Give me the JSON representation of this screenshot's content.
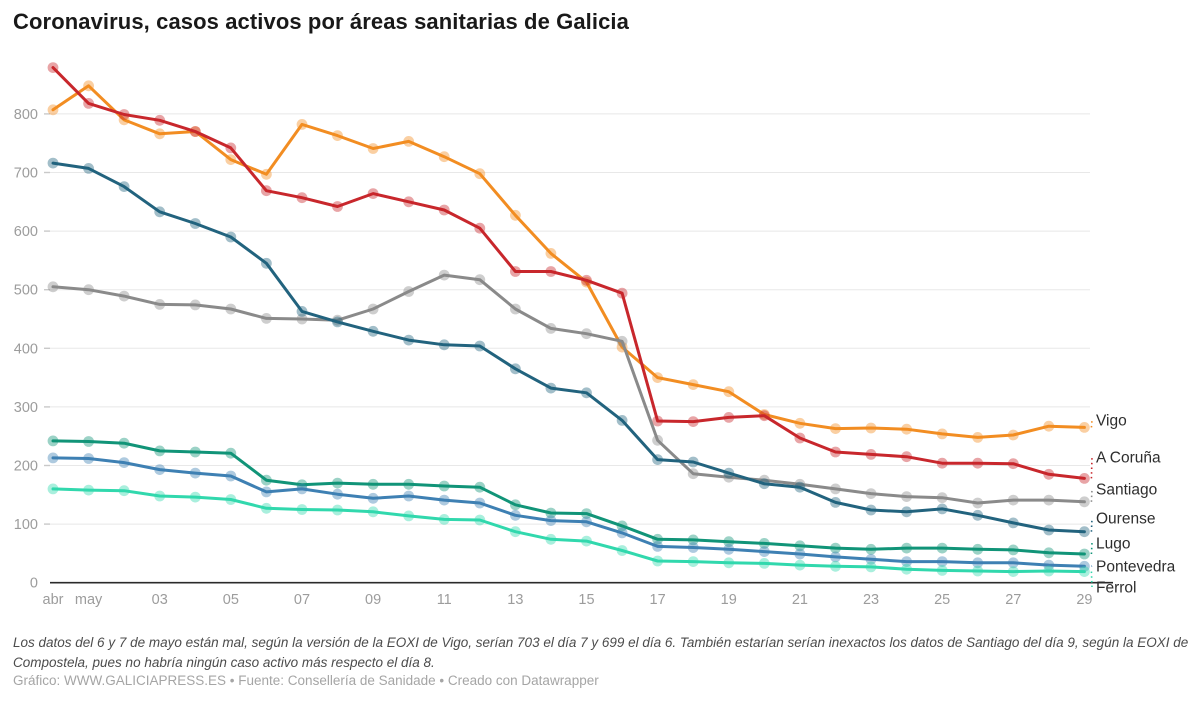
{
  "title": "Coronavirus, casos activos por áreas sanitarias de Galicia",
  "footnote": "Los datos del 6 y 7 de mayo están mal, según la versión de la EOXI de Vigo, serían 703 el día 7 y 699 el día 6. También estarían serían inexactos los datos de Santiago del día 9, según la EOXI de Compostela, pues no habría ningún caso activo más respecto el día 8.",
  "byline": "Gráfico: WWW.GALICIAPRESS.ES • Fuente: Consellería de Sanidade • Creado con Datawrapper",
  "chart_data": {
    "type": "line",
    "title": "Coronavirus, casos activos por áreas sanitarias de Galicia",
    "xlabel": "",
    "ylabel": "",
    "ylim": [
      0,
      900
    ],
    "yticks": [
      0,
      100,
      200,
      300,
      400,
      500,
      600,
      700,
      800
    ],
    "grid": "horizontal",
    "legend_position": "right-edge-labels",
    "categories": [
      "30 abr",
      "1 may",
      "2 may",
      "3 may",
      "4 may",
      "5 may",
      "6 may",
      "7 may",
      "8 may",
      "9 may",
      "10 may",
      "11 may",
      "12 may",
      "13 may",
      "14 may",
      "15 may",
      "16 may",
      "17 may",
      "18 may",
      "19 may",
      "20 may",
      "21 may",
      "22 may",
      "23 may",
      "24 may",
      "25 may",
      "26 may",
      "27 may",
      "28 may",
      "29 may"
    ],
    "x_ticks": [
      {
        "day": 0,
        "label": "abr"
      },
      {
        "day": 1,
        "label": "may"
      },
      {
        "day": 3,
        "label": "03"
      },
      {
        "day": 5,
        "label": "05"
      },
      {
        "day": 7,
        "label": "07"
      },
      {
        "day": 9,
        "label": "09"
      },
      {
        "day": 11,
        "label": "11"
      },
      {
        "day": 13,
        "label": "13"
      },
      {
        "day": 15,
        "label": "15"
      },
      {
        "day": 17,
        "label": "17"
      },
      {
        "day": 19,
        "label": "19"
      },
      {
        "day": 21,
        "label": "21"
      },
      {
        "day": 23,
        "label": "23"
      },
      {
        "day": 25,
        "label": "25"
      },
      {
        "day": 27,
        "label": "27"
      },
      {
        "day": 29,
        "label": "29"
      }
    ],
    "series": [
      {
        "name": "Vigo",
        "slug": "vigo",
        "color": "#f28d22",
        "label_y": 420,
        "values": [
          807,
          848,
          790,
          766,
          770,
          722,
          697,
          782,
          763,
          741,
          753,
          727,
          698,
          627,
          562,
          513,
          402,
          350,
          338,
          326,
          287,
          272,
          263,
          264,
          262,
          254,
          248,
          252,
          267,
          265
        ]
      },
      {
        "name": "A Coruña",
        "slug": "a-coruna",
        "color": "#c8272c",
        "label_y": 457,
        "values": [
          879,
          818,
          799,
          789,
          770,
          742,
          669,
          657,
          642,
          664,
          650,
          636,
          605,
          531,
          531,
          516,
          494,
          276,
          275,
          282,
          285,
          247,
          223,
          219,
          215,
          204,
          204,
          203,
          185,
          178
        ]
      },
      {
        "name": "Santiago",
        "slug": "santiago",
        "color": "#8a8a8a",
        "label_y": 489,
        "values": [
          505,
          500,
          489,
          475,
          474,
          467,
          451,
          450,
          448,
          467,
          497,
          525,
          517,
          467,
          434,
          425,
          412,
          243,
          186,
          180,
          175,
          168,
          160,
          152,
          147,
          145,
          136,
          141,
          141,
          138
        ]
      },
      {
        "name": "Ourense",
        "slug": "ourense",
        "color": "#22637e",
        "label_y": 518,
        "values": [
          716,
          707,
          676,
          633,
          613,
          590,
          545,
          463,
          445,
          429,
          414,
          406,
          404,
          365,
          332,
          324,
          277,
          210,
          206,
          187,
          169,
          163,
          137,
          124,
          121,
          126,
          115,
          102,
          90,
          87
        ]
      },
      {
        "name": "Lugo",
        "slug": "lugo",
        "color": "#119478",
        "label_y": 543,
        "values": [
          242,
          241,
          238,
          225,
          223,
          221,
          175,
          167,
          170,
          168,
          168,
          165,
          163,
          133,
          119,
          118,
          97,
          74,
          73,
          70,
          67,
          63,
          59,
          57,
          59,
          59,
          57,
          56,
          51,
          49
        ]
      },
      {
        "name": "Pontevedra",
        "slug": "pontevedra",
        "color": "#3e80b3",
        "label_y": 566,
        "values": [
          213,
          212,
          205,
          193,
          187,
          182,
          155,
          160,
          151,
          144,
          148,
          141,
          136,
          115,
          106,
          104,
          85,
          62,
          60,
          57,
          53,
          49,
          44,
          40,
          36,
          36,
          34,
          34,
          30,
          28
        ]
      },
      {
        "name": "Ferrol",
        "slug": "ferrol",
        "color": "#31d8ad",
        "label_y": 587,
        "values": [
          160,
          158,
          157,
          148,
          146,
          142,
          127,
          125,
          124,
          121,
          114,
          108,
          107,
          87,
          74,
          71,
          55,
          37,
          36,
          34,
          33,
          30,
          28,
          27,
          23,
          21,
          20,
          19,
          20,
          19
        ]
      }
    ],
    "style": {
      "gridline_color": "#e8e8e8",
      "tick_dash_color": "#c9c9c9",
      "axis_line_color": "#2b2b2b",
      "axis_label_color": "#9c9c9c",
      "series_label_color": "#2e2e2e",
      "background": "#ffffff"
    }
  }
}
